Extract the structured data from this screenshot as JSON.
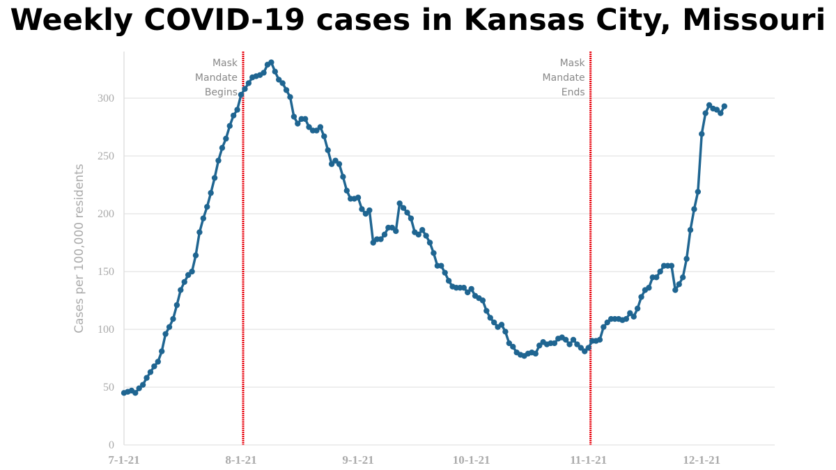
{
  "chart_data": {
    "type": "line",
    "title": "Weekly COVID-19 cases in Kansas City, Missouri",
    "xlabel": "",
    "ylabel": "Cases per 100,000 residents",
    "ylim": [
      0,
      340
    ],
    "yticks": [
      0,
      50,
      100,
      150,
      200,
      250,
      300
    ],
    "xticks": [
      {
        "date": "2021-07-01",
        "label": "7-1-21"
      },
      {
        "date": "2021-08-01",
        "label": "8-1-21"
      },
      {
        "date": "2021-09-01",
        "label": "9-1-21"
      },
      {
        "date": "2021-10-01",
        "label": "10-1-21"
      },
      {
        "date": "2021-11-01",
        "label": "11-1-21"
      },
      {
        "date": "2021-12-01",
        "label": "12-1-21"
      }
    ],
    "grid": true,
    "series_color": "#1f6591",
    "annotation_color": "#e8000b",
    "annotations": [
      {
        "date": "2021-08-01",
        "lines": [
          "Mask",
          "Mandate",
          "Begins"
        ]
      },
      {
        "date": "2021-11-01",
        "lines": [
          "Mask",
          "Mandate",
          "Ends"
        ]
      }
    ],
    "daily_values_by_month": {
      "2021-07": [
        45,
        46,
        47,
        45,
        49,
        52,
        58,
        63,
        68,
        72,
        81,
        96,
        102,
        109,
        121,
        134,
        141,
        147,
        150,
        164,
        184,
        196,
        206,
        218,
        231,
        246,
        257,
        265,
        276,
        285,
        290
      ],
      "2021-08": [
        303,
        308,
        313,
        318,
        319,
        320,
        322,
        329,
        331,
        323,
        316,
        313,
        307,
        301,
        284,
        278,
        282,
        282,
        275,
        272,
        272,
        275,
        267,
        255,
        243,
        246,
        243,
        232,
        220,
        213,
        213
      ],
      "2021-09": [
        214,
        204,
        200,
        203,
        175,
        178,
        178,
        182,
        188,
        188,
        185,
        209,
        205,
        201,
        196,
        184,
        182,
        186,
        181,
        175,
        166,
        155,
        155,
        149,
        142,
        137,
        136,
        136,
        136,
        132
      ],
      "2021-10": [
        135,
        129,
        127,
        125,
        116,
        110,
        106,
        102,
        104,
        98,
        88,
        85,
        80,
        78,
        77,
        79,
        80,
        79,
        86,
        89,
        87,
        88,
        88,
        92,
        93,
        91,
        87,
        91,
        87,
        84,
        81
      ],
      "2021-11": [
        84,
        90,
        90,
        91,
        102,
        106,
        109,
        109,
        109,
        108,
        109,
        114,
        111,
        118,
        128,
        134,
        136,
        145,
        145,
        150,
        155,
        155,
        155,
        134,
        139,
        145,
        161,
        186,
        204,
        219
      ],
      "2021-12": [
        269,
        287,
        294,
        291,
        290,
        287,
        293
      ]
    }
  }
}
